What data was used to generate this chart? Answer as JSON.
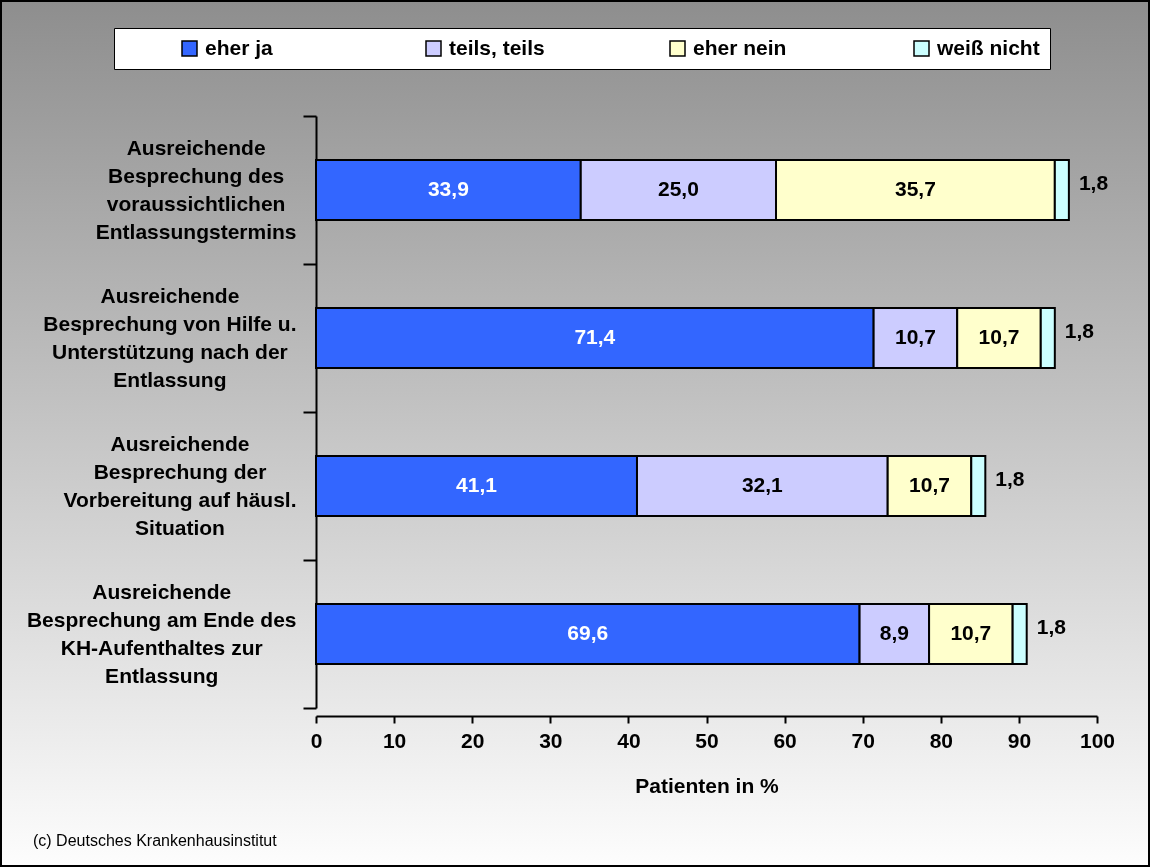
{
  "chart_data": {
    "type": "bar",
    "orientation": "horizontal",
    "stacked": true,
    "categories": [
      "Ausreichende Besprechung des voraussichtlichen Entlassungstermins",
      "Ausreichende Besprechung von Hilfe u. Unterstützung nach der Entlassung",
      "Ausreichende Besprechung der Vorbereitung auf häusl. Situation",
      "Ausreichende Besprechung am Ende des KH-Aufenthaltes zur Entlassung"
    ],
    "series": [
      {
        "name": "eher ja",
        "color": "#3366ff",
        "values": [
          33.9,
          71.4,
          41.1,
          69.6
        ],
        "value_labels": [
          "33,9",
          "71,4",
          "41,1",
          "69,6"
        ]
      },
      {
        "name": "teils, teils",
        "color": "#ccccff",
        "values": [
          25.0,
          10.7,
          32.1,
          8.9
        ],
        "value_labels": [
          "25,0",
          "10,7",
          "32,1",
          "8,9"
        ]
      },
      {
        "name": "eher nein",
        "color": "#ffffcc",
        "values": [
          35.7,
          10.7,
          10.7,
          10.7
        ],
        "value_labels": [
          "35,7",
          "10,7",
          "10,7",
          "10,7"
        ]
      },
      {
        "name": "weiß nicht",
        "color": "#ccffff",
        "values": [
          1.8,
          1.8,
          1.8,
          1.8
        ],
        "value_labels": [
          "1,8",
          "1,8",
          "1,8",
          "1,8"
        ]
      }
    ],
    "xlim": [
      0,
      100
    ],
    "xticks": [
      0,
      10,
      20,
      30,
      40,
      50,
      60,
      70,
      80,
      90,
      100
    ],
    "xlabel": "Patienten in %",
    "legend": "top",
    "annotations": [
      "(c) Deutsches Krankenhausinstitut"
    ]
  }
}
